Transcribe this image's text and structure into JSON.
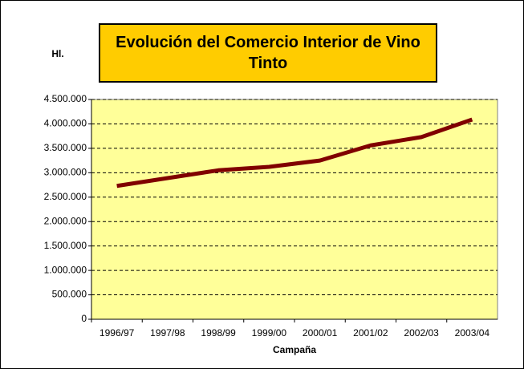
{
  "chart_data": {
    "type": "line",
    "title": "Evolución del Comercio Interior de Vino Tinto",
    "y_label": "Hl.",
    "x_label": "Campaña",
    "categories": [
      "1996/97",
      "1997/98",
      "1998/99",
      "1999/00",
      "2000/01",
      "2001/02",
      "2002/03",
      "2003/04"
    ],
    "series": [
      {
        "name": "Vino Tinto",
        "color": "#800000",
        "values": [
          2730000,
          2890000,
          3050000,
          3120000,
          3250000,
          3560000,
          3730000,
          4090000
        ]
      }
    ],
    "ylim": [
      0,
      4500000
    ],
    "yticks": [
      0,
      {
        "value": 500000,
        "label": "500.000"
      },
      {
        "value": 1000000,
        "label": "1.000.000"
      },
      {
        "value": 1500000,
        "label": "1.500.000"
      },
      {
        "value": 2000000,
        "label": "2.000.000"
      },
      {
        "value": 2500000,
        "label": "2.500.000"
      },
      {
        "value": 3000000,
        "label": "3.000.000"
      },
      {
        "value": 3500000,
        "label": "3.500.000"
      },
      {
        "value": 4000000,
        "label": "4.000.000"
      },
      {
        "value": 4500000,
        "label": "4.500.000"
      }
    ],
    "grid": true,
    "plot_background": "#ffff99",
    "title_background": "#ffcc00"
  }
}
